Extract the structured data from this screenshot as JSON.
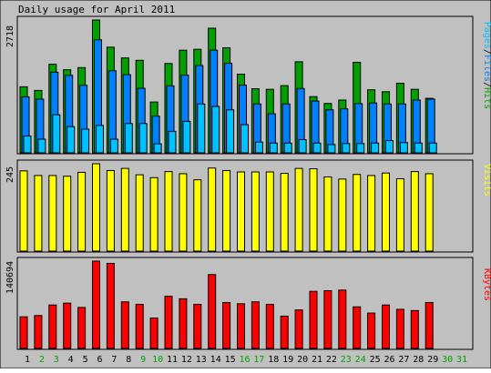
{
  "title": "Daily usage for April 2011",
  "colors": {
    "background": "#c0c0c0",
    "panel": "#c0c0c0",
    "hits": "#00a000",
    "files": "#0080ff",
    "pages": "#00c0ff",
    "visits": "#ffff00",
    "kbytes": "#ff0000",
    "weekday_label": "#000000",
    "weekend_label": "#00a000"
  },
  "chart_data": [
    {
      "type": "bar",
      "title": "Daily usage for April 2011",
      "side_label": {
        "pages": "Pages",
        "sep1": "/",
        "files": "Files",
        "sep2": "/",
        "hits": "Hits"
      },
      "y_max_label": "2718",
      "y_max": 2718,
      "series": [
        {
          "name": "Hits",
          "values": [
            1352,
            1277,
            1813,
            1700,
            1744,
            2718,
            2162,
            1942,
            1893,
            1040,
            1828,
            2100,
            2119,
            2550,
            2150,
            1610,
            1310,
            1300,
            1375,
            1864,
            1150,
            1010,
            1080,
            1852,
            1290,
            1250,
            1424,
            1300,
            1115,
            0,
            0
          ]
        },
        {
          "name": "Files",
          "values": [
            1145,
            1100,
            1650,
            1586,
            1383,
            2313,
            1680,
            1600,
            1321,
            750,
            1370,
            1590,
            1786,
            2100,
            1833,
            1385,
            1000,
            800,
            1000,
            1316,
            1060,
            880,
            900,
            1008,
            1020,
            1000,
            1000,
            1080,
            1100,
            0,
            0
          ]
        },
        {
          "name": "Pages",
          "values": [
            345,
            280,
            780,
            537,
            485,
            561,
            280,
            600,
            600,
            185,
            440,
            645,
            1000,
            950,
            880,
            577,
            220,
            200,
            200,
            270,
            200,
            170,
            190,
            190,
            200,
            250,
            210,
            200,
            200,
            0,
            0
          ]
        }
      ],
      "categories": [
        "1",
        "2",
        "3",
        "4",
        "5",
        "6",
        "7",
        "8",
        "9",
        "10",
        "11",
        "12",
        "13",
        "14",
        "15",
        "16",
        "17",
        "18",
        "19",
        "20",
        "21",
        "22",
        "23",
        "24",
        "25",
        "26",
        "27",
        "28",
        "29",
        "30",
        "31"
      ]
    },
    {
      "type": "bar",
      "side_label": "Visits",
      "y_max_label": "245",
      "y_max": 245,
      "series": [
        {
          "name": "Visits",
          "values": [
            225,
            212,
            212,
            210,
            221,
            245,
            226,
            232,
            214,
            206,
            223,
            217,
            200,
            233,
            226,
            222,
            222,
            222,
            218,
            232,
            231,
            208,
            202,
            215,
            212,
            219,
            203,
            223,
            217,
            0,
            0
          ]
        }
      ]
    },
    {
      "type": "bar",
      "side_label": "KBytes",
      "y_max_label": "140694",
      "y_max": 140694,
      "series": [
        {
          "name": "KBytes",
          "values": [
            51000,
            53000,
            70000,
            73000,
            66000,
            140694,
            137000,
            75000,
            71000,
            49000,
            84000,
            80000,
            71000,
            119000,
            74000,
            72000,
            75000,
            71000,
            52000,
            62000,
            92000,
            93000,
            94000,
            67000,
            57000,
            70000,
            63000,
            61000,
            74000,
            0,
            0
          ]
        }
      ]
    }
  ],
  "x_axis": {
    "labels": [
      "1",
      "2",
      "3",
      "4",
      "5",
      "6",
      "7",
      "8",
      "9",
      "10",
      "11",
      "12",
      "13",
      "14",
      "15",
      "16",
      "17",
      "18",
      "19",
      "20",
      "21",
      "22",
      "23",
      "24",
      "25",
      "26",
      "27",
      "28",
      "29",
      "30",
      "31"
    ],
    "weekend": [
      false,
      true,
      true,
      false,
      false,
      false,
      false,
      false,
      true,
      true,
      false,
      false,
      false,
      false,
      false,
      true,
      true,
      false,
      false,
      false,
      false,
      false,
      true,
      true,
      false,
      false,
      false,
      false,
      false,
      true,
      true
    ]
  }
}
